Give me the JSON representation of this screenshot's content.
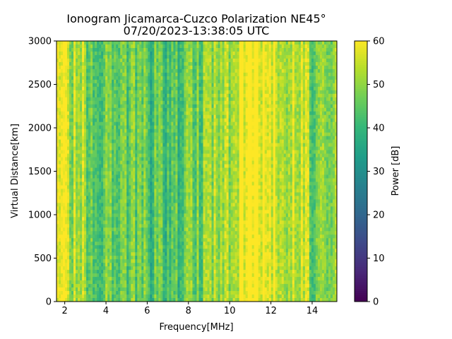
{
  "chart_data": {
    "type": "heatmap",
    "title": "Ionogram Jicamarca-Cuzco Polarization NE45°",
    "subtitle": "07/20/2023-13:38:05 UTC",
    "xlabel": "Frequency[MHz]",
    "ylabel": "Virtual Distance[km]",
    "xlim": [
      1.6,
      15.2
    ],
    "ylim": [
      0,
      3000
    ],
    "xticks": [
      "2",
      "4",
      "6",
      "8",
      "10",
      "12",
      "14"
    ],
    "yticks": [
      "0",
      "500",
      "1000",
      "1500",
      "2000",
      "2500",
      "3000"
    ],
    "colorbar": {
      "label": "Power [dB]",
      "range": [
        0,
        60
      ],
      "ticks": [
        "0",
        "10",
        "20",
        "30",
        "40",
        "50",
        "60"
      ],
      "colormap": "viridis"
    },
    "power_profile_by_frequency": {
      "note_units": "frequency MHz -> typical power dB",
      "frequency": [
        1.6,
        2.0,
        2.5,
        3.0,
        3.5,
        4.0,
        4.5,
        5.0,
        5.5,
        6.0,
        6.5,
        7.0,
        7.5,
        8.0,
        8.5,
        9.0,
        9.5,
        10.0,
        10.3,
        10.5,
        11.0,
        11.5,
        12.0,
        12.3,
        12.5,
        13.0,
        13.5,
        14.0,
        14.5,
        15.0,
        15.2
      ],
      "power": [
        57,
        54,
        52,
        50,
        45,
        46,
        44,
        45,
        46,
        43,
        42,
        42,
        44,
        45,
        47,
        48,
        50,
        51,
        55,
        59,
        60,
        60,
        59,
        56,
        54,
        53,
        55,
        47,
        50,
        49,
        50
      ]
    },
    "grid": false
  }
}
